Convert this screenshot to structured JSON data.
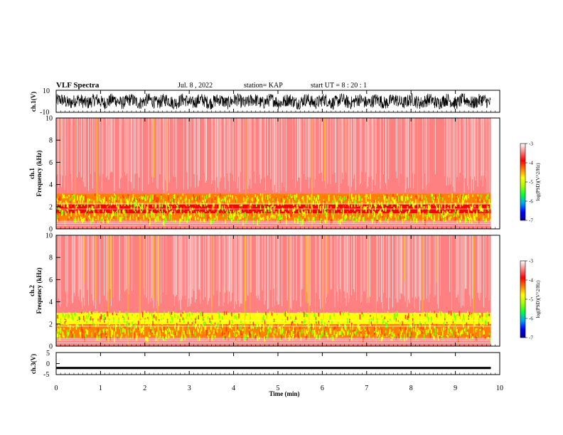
{
  "header": {
    "title": "VLF Spectra",
    "date": "Jul. 8 , 2022",
    "station": "station= KAP",
    "start": "start UT = 8 : 20 : 1"
  },
  "chart_data": [
    {
      "type": "line",
      "panel": "ch1-waveform",
      "ylabel": "ch.1(V)",
      "ylim": [
        -10,
        10
      ],
      "yticks": [
        "10",
        "-10"
      ],
      "xlim": [
        0,
        10
      ],
      "description_values": "dense waveform spanning roughly -7 to +7 V, 0 to 9.8 min"
    },
    {
      "type": "heatmap",
      "panel": "ch1-spectrogram",
      "ylabel": "ch.1\nFrequency (kHz)",
      "ylabel_line1": "ch.1",
      "ylabel_line2": "Frequency (kHz)",
      "ylim": [
        0,
        10
      ],
      "yticks": [
        "0",
        "2",
        "4",
        "6",
        "8",
        "10"
      ],
      "xlim": [
        0,
        10
      ],
      "data_extent_min": 9.8,
      "bands_khz": [
        {
          "from": 0.0,
          "to": 0.8,
          "log_psd": -3.5
        },
        {
          "from": 0.8,
          "to": 1.4,
          "log_psd": -4.2
        },
        {
          "from": 1.4,
          "to": 2.2,
          "log_psd": -4.0
        },
        {
          "from": 2.2,
          "to": 3.2,
          "log_psd": -4.4
        },
        {
          "from": 3.2,
          "to": 10.0,
          "log_psd": -3.6
        }
      ]
    },
    {
      "type": "heatmap",
      "panel": "ch2-spectrogram",
      "ylabel_line1": "ch.2",
      "ylabel_line2": "Frequency (kHz)",
      "ylim": [
        0,
        10
      ],
      "yticks": [
        "0",
        "2",
        "4",
        "6",
        "8",
        "10"
      ],
      "xlim": [
        0,
        10
      ],
      "data_extent_min": 9.8,
      "bands_khz": [
        {
          "from": 0.0,
          "to": 0.8,
          "log_psd": -3.5
        },
        {
          "from": 0.8,
          "to": 2.0,
          "log_psd": -4.4
        },
        {
          "from": 2.0,
          "to": 3.0,
          "log_psd": -4.7
        },
        {
          "from": 3.0,
          "to": 10.0,
          "log_psd": -3.6
        }
      ]
    },
    {
      "type": "line",
      "panel": "ch3-waveform",
      "ylabel": "ch.3(V)",
      "ylim": [
        -5,
        5
      ],
      "yticks": [
        "5",
        "0",
        "-5"
      ],
      "xlim": [
        0,
        10
      ],
      "xticks": [
        "0",
        "1",
        "2",
        "3",
        "4",
        "5",
        "6",
        "7",
        "8",
        "9",
        "10"
      ],
      "xlabel": "Time (min)",
      "description_values": "near-constant band around -2 V"
    }
  ],
  "colorbar": {
    "label": "log(PSD)(V^2/Hz)",
    "range": [
      -7,
      -3
    ],
    "ticks": [
      "-3",
      "-4",
      "-5",
      "-6",
      "-7"
    ],
    "colors": [
      "#000080",
      "#0000ff",
      "#00a0ff",
      "#00ff40",
      "#a0ff00",
      "#ffff00",
      "#ff8000",
      "#ff0000",
      "#ff8080",
      "#ffffff"
    ]
  }
}
